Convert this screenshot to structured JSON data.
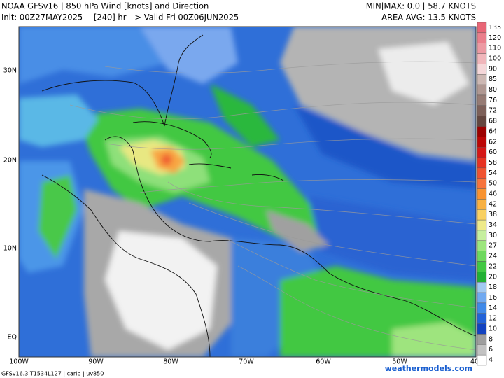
{
  "header": {
    "title": "NOAA GFSv16 | 850 hPa Wind [knots] and Direction",
    "init": "Init: 00Z27MAY2025 -- [240] hr --> Valid Fri 00Z06JUN2025",
    "minmax": "MIN|MAX: 0.0 | 58.7 KNOTS",
    "area_avg": "AREA AVG: 13.5 KNOTS"
  },
  "latitude_labels": [
    "30N",
    "20N",
    "10N",
    "EQ"
  ],
  "longitude_labels": [
    "100W",
    "90W",
    "80W",
    "70W",
    "60W",
    "50W",
    "40"
  ],
  "colorbar": [
    {
      "value": 135,
      "color": "#e86676"
    },
    {
      "value": 120,
      "color": "#ea7f8c"
    },
    {
      "value": 110,
      "color": "#ec9aa3"
    },
    {
      "value": 100,
      "color": "#f0b6bb"
    },
    {
      "value": 90,
      "color": "#f5d7d9"
    },
    {
      "value": 85,
      "color": "#cdb8b3"
    },
    {
      "value": 80,
      "color": "#b09892"
    },
    {
      "value": 76,
      "color": "#967b74"
    },
    {
      "value": 72,
      "color": "#7d6059"
    },
    {
      "value": 68,
      "color": "#63463f"
    },
    {
      "value": 64,
      "color": "#9c0000"
    },
    {
      "value": 62,
      "color": "#bb0606"
    },
    {
      "value": 60,
      "color": "#d51616"
    },
    {
      "value": 58,
      "color": "#e73222"
    },
    {
      "value": 54,
      "color": "#f05330"
    },
    {
      "value": 50,
      "color": "#f6733c"
    },
    {
      "value": 46,
      "color": "#f89331"
    },
    {
      "value": 42,
      "color": "#f8b142"
    },
    {
      "value": 38,
      "color": "#f8d062"
    },
    {
      "value": 34,
      "color": "#eeea8a"
    },
    {
      "value": 30,
      "color": "#c6ef9f"
    },
    {
      "value": 27,
      "color": "#9de67e"
    },
    {
      "value": 24,
      "color": "#6ed85e"
    },
    {
      "value": 22,
      "color": "#42c843"
    },
    {
      "value": 20,
      "color": "#22b033"
    },
    {
      "value": 18,
      "color": "#a2c9f2"
    },
    {
      "value": 16,
      "color": "#71a9f0"
    },
    {
      "value": 14,
      "color": "#4089e8"
    },
    {
      "value": 12,
      "color": "#2262d8"
    },
    {
      "value": 10,
      "color": "#1242c0"
    },
    {
      "value": 8,
      "color": "#9e9e9e"
    },
    {
      "value": 6,
      "color": "#c2c2c2"
    },
    {
      "value": 4,
      "color": "#ffffff"
    }
  ],
  "footer": {
    "model": "GFSv16.3 T1534L127 | carib | uv850",
    "site": "weathermodels.com"
  }
}
